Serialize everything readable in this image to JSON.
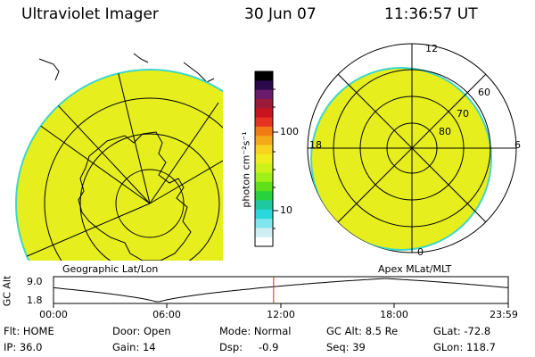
{
  "header": {
    "instrument": "Ultraviolet Imager",
    "date": "30 Jun 07",
    "time": "11:36:57 UT"
  },
  "left_map": {
    "label": "Geographic Lat/Lon"
  },
  "right_map": {
    "label": "Apex MLat/MLT",
    "lat_labels": [
      "60",
      "70",
      "80"
    ],
    "mlt_labels": {
      "top": "12",
      "bottom": "0",
      "left": "18",
      "right": "6"
    }
  },
  "colorbar": {
    "unit_label": "photon cm⁻²s⁻¹",
    "tick_labels": [
      "100",
      "10"
    ],
    "colors": [
      "#000000",
      "#2a0a4a",
      "#6a1a6a",
      "#9a1a3a",
      "#c8141e",
      "#e63222",
      "#f07a14",
      "#f5a81a",
      "#f7d21e",
      "#eeee1e",
      "#cdf21a",
      "#a0ee1a",
      "#5ee01a",
      "#28d23c",
      "#1ec8a0",
      "#2ad7dc",
      "#7fe6ee",
      "#cfeef3",
      "#ffffff"
    ]
  },
  "timeline": {
    "ylabel": "GC Alt",
    "y_top": "9.0",
    "y_bottom": "1.8",
    "x_ticks": [
      "00:00",
      "06:00",
      "12:00",
      "18:00",
      "23:59"
    ],
    "current_time_hours": 11.616
  },
  "info": {
    "flt": "Flt: HOME",
    "ip": "IP: 36.0",
    "door": "Door: Open",
    "gain": "Gain: 14",
    "mode": "Mode: Normal",
    "dsp": "Dsp:",
    "dsp_value": "-0.9",
    "gc_alt": "GC Alt: 8.5 Re",
    "seq": "Seq: 39",
    "glat": "GLat: -72.8",
    "glon": "GLon: 118.7"
  },
  "colors": {
    "aurora_fill": "#e6ee1e",
    "aurora_edge": "#3fd7c8",
    "marker_red": "#d03020"
  }
}
